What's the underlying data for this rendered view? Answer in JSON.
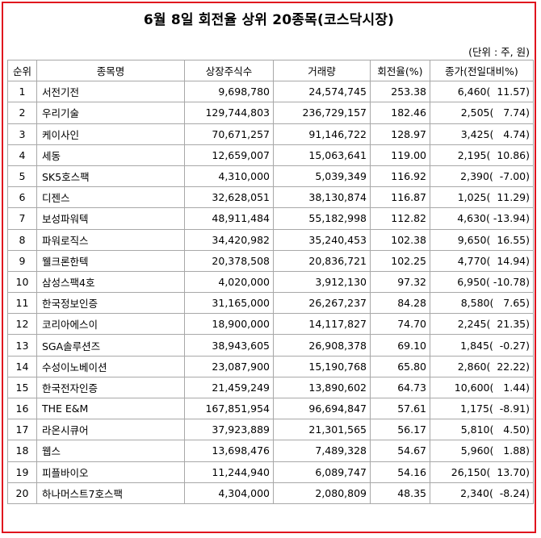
{
  "title": "6월 8일 회전율 상위 20종목(코스닥시장)",
  "unit": "(단위 : 주, 원)",
  "headers": [
    "순위",
    "종목명",
    "상장주식수",
    "거래량",
    "회전율(%)",
    "종가(전일대비%)"
  ],
  "rows": [
    [
      "1",
      "서전기전",
      "9,698,780",
      "24,574,745",
      "253.38",
      "6,460(  11.57)"
    ],
    [
      "2",
      "우리기술",
      "129,744,803",
      "236,729,157",
      "182.46",
      "2,505(   7.74)"
    ],
    [
      "3",
      "케이사인",
      "70,671,257",
      "91,146,722",
      "128.97",
      "3,425(   4.74)"
    ],
    [
      "4",
      "세동",
      "12,659,007",
      "15,063,641",
      "119.00",
      "2,195(  10.86)"
    ],
    [
      "5",
      "SK5호스팩",
      "4,310,000",
      "5,039,349",
      "116.92",
      "2,390(  -7.00)"
    ],
    [
      "6",
      "디젠스",
      "32,628,051",
      "38,130,874",
      "116.87",
      "1,025(  11.29)"
    ],
    [
      "7",
      "보성파워텍",
      "48,911,484",
      "55,182,998",
      "112.82",
      "4,630( -13.94)"
    ],
    [
      "8",
      "파워로직스",
      "34,420,982",
      "35,240,453",
      "102.38",
      "9,650(  16.55)"
    ],
    [
      "9",
      "웰크론한텍",
      "20,378,508",
      "20,836,721",
      "102.25",
      "4,770(  14.94)"
    ],
    [
      "10",
      "삼성스팩4호",
      "4,020,000",
      "3,912,130",
      "97.32",
      "6,950( -10.78)"
    ],
    [
      "11",
      "한국정보인증",
      "31,165,000",
      "26,267,237",
      "84.28",
      "8,580(   7.65)"
    ],
    [
      "12",
      "코리아에스이",
      "18,900,000",
      "14,117,827",
      "74.70",
      "2,245(  21.35)"
    ],
    [
      "13",
      "SGA솔루션즈",
      "38,943,605",
      "26,908,378",
      "69.10",
      "1,845(  -0.27)"
    ],
    [
      "14",
      "수성이노베이션",
      "23,087,900",
      "15,190,768",
      "65.80",
      "2,860(  22.22)"
    ],
    [
      "15",
      "한국전자인증",
      "21,459,249",
      "13,890,602",
      "64.73",
      "10,600(   1.44)"
    ],
    [
      "16",
      "THE E&M",
      "167,851,954",
      "96,694,847",
      "57.61",
      "1,175(  -8.91)"
    ],
    [
      "17",
      "라온시큐어",
      "37,923,889",
      "21,301,565",
      "56.17",
      "5,810(   4.50)"
    ],
    [
      "18",
      "웹스",
      "13,698,476",
      "7,489,328",
      "54.67",
      "5,960(   1.88)"
    ],
    [
      "19",
      "피플바이오",
      "11,244,940",
      "6,089,747",
      "54.16",
      "26,150(  13.70)"
    ],
    [
      "20",
      "하나머스트7호스팩",
      "4,304,000",
      "2,080,809",
      "48.35",
      "2,340(  -8.24)"
    ]
  ],
  "colors": {
    "frame": "#e0141e",
    "grid": "#a8a8a8"
  }
}
